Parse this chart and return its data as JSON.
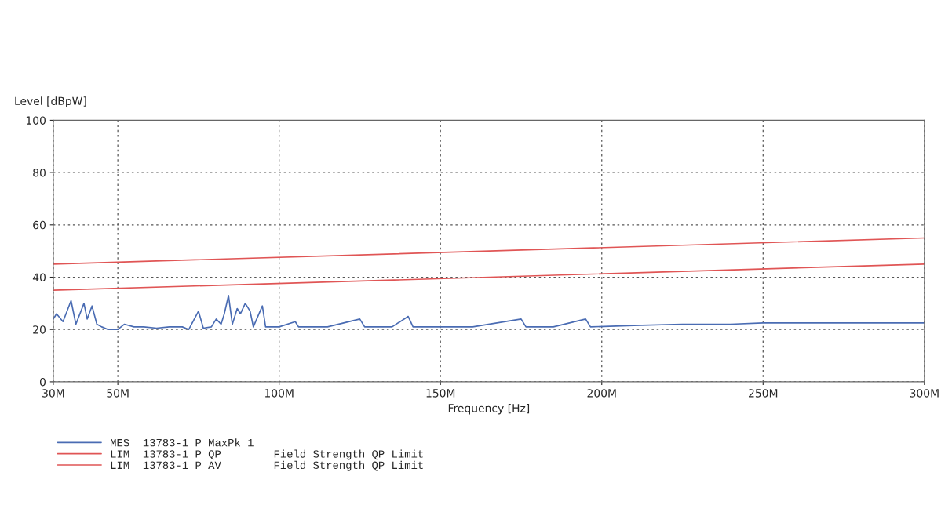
{
  "chart_data": {
    "type": "line",
    "xlabel": "Frequency [Hz]",
    "ylabel": "Level [dBpW]",
    "xlim": [
      30000000,
      300000000
    ],
    "xticks": [
      {
        "value": 30000000,
        "label": "30M"
      },
      {
        "value": 50000000,
        "label": "50M"
      },
      {
        "value": 100000000,
        "label": "100M"
      },
      {
        "value": 150000000,
        "label": "150M"
      },
      {
        "value": 200000000,
        "label": "200M"
      },
      {
        "value": 250000000,
        "label": "250M"
      },
      {
        "value": 300000000,
        "label": "300M"
      }
    ],
    "ylim": [
      0,
      100
    ],
    "yticks": [
      0,
      20,
      40,
      60,
      80,
      100
    ],
    "grid": true,
    "legend": "bottom",
    "line_style": "solid",
    "series": [
      {
        "name": "MES  13783-1 P MaxPk 1",
        "color": "#4a6cb3",
        "x": [
          30000000,
          31000000,
          33000000,
          35500000,
          37000000,
          39500000,
          40500000,
          42000000,
          43500000,
          45000000,
          47000000,
          50000000,
          52000000,
          55000000,
          58000000,
          62000000,
          66000000,
          70000000,
          72000000,
          75000000,
          76500000,
          79000000,
          80500000,
          82000000,
          83000000,
          84300000,
          85500000,
          87000000,
          88000000,
          89500000,
          91000000,
          92000000,
          94800000,
          95800000,
          98000000,
          100000000,
          105000000,
          106000000,
          115000000,
          125000000,
          126500000,
          135000000,
          140000000,
          141500000,
          150000000,
          160000000,
          175000000,
          176500000,
          185000000,
          195000000,
          196500000,
          210000000,
          225000000,
          240000000,
          250000000,
          260000000,
          270000000,
          280000000,
          290000000,
          300000000
        ],
        "values": [
          24,
          26,
          23,
          31,
          22,
          30,
          24,
          29,
          22,
          21,
          20,
          20,
          22,
          21,
          21,
          20.5,
          21,
          21,
          20,
          27,
          20.5,
          21,
          24,
          22,
          26,
          33,
          22,
          28,
          26,
          30,
          27,
          21,
          29,
          21,
          21,
          21,
          23,
          21,
          21,
          24,
          21,
          21,
          25,
          21,
          21,
          21,
          24,
          21,
          21,
          24,
          21,
          21.5,
          22,
          22,
          22.5,
          22.5,
          22.5,
          22.5,
          22.5,
          22.5
        ]
      },
      {
        "name": "LIM  13783-1 P QP        Field Strength QP Limit",
        "color": "#e05555",
        "x": [
          30000000,
          300000000
        ],
        "values": [
          45,
          55
        ]
      },
      {
        "name": "LIM  13783-1 P AV        Field Strength QP Limit",
        "color": "#e05555",
        "x": [
          30000000,
          300000000
        ],
        "values": [
          35,
          45
        ]
      }
    ]
  }
}
